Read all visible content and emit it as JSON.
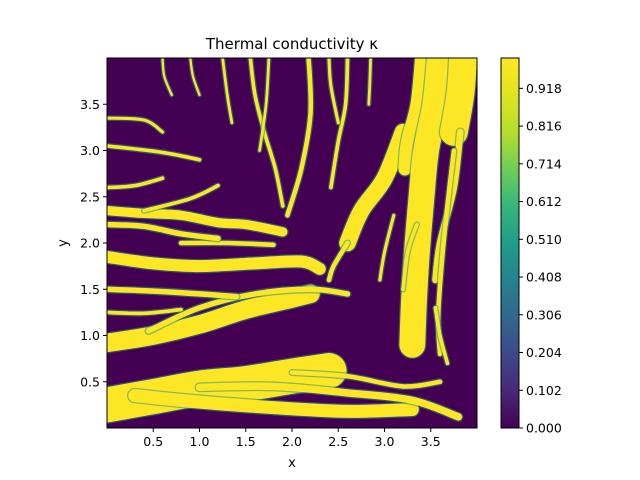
{
  "chart_data": {
    "type": "heatmap",
    "title": "Thermal conductivity κ",
    "xlabel": "x",
    "ylabel": "y",
    "xlim": [
      0,
      4
    ],
    "ylim": [
      0,
      4
    ],
    "x_ticks": [
      0.5,
      1.0,
      1.5,
      2.0,
      2.5,
      3.0,
      3.5
    ],
    "x_tick_labels": [
      "0.5",
      "1.0",
      "1.5",
      "2.0",
      "2.5",
      "3.0",
      "3.5"
    ],
    "y_ticks": [
      0.5,
      1.0,
      1.5,
      2.0,
      2.5,
      3.0,
      3.5
    ],
    "y_tick_labels": [
      "0.5",
      "1.0",
      "1.5",
      "2.0",
      "2.5",
      "3.0",
      "3.5"
    ],
    "colormap": "viridis",
    "colorbar": {
      "range": [
        0,
        1
      ],
      "ticks": [
        0.0,
        0.102,
        0.204,
        0.306,
        0.408,
        0.51,
        0.612,
        0.714,
        0.816,
        0.918
      ],
      "tick_labels": [
        "0.000",
        "0.102",
        "0.204",
        "0.306",
        "0.408",
        "0.510",
        "0.612",
        "0.714",
        "0.816",
        "0.918"
      ]
    },
    "background_value": 0.0,
    "channels": [
      {
        "value": 1,
        "width": 0.38,
        "points": [
          [
            0,
            0.25
          ],
          [
            0.5,
            0.34
          ],
          [
            1.0,
            0.43
          ],
          [
            1.5,
            0.48
          ],
          [
            2.0,
            0.56
          ],
          [
            2.4,
            0.62
          ]
        ]
      },
      {
        "value": 1,
        "width": 0.14,
        "points": [
          [
            0.3,
            0.35
          ],
          [
            1.0,
            0.28
          ],
          [
            1.8,
            0.22
          ],
          [
            2.6,
            0.18
          ],
          [
            3.3,
            0.2
          ]
        ]
      },
      {
        "value": 1,
        "width": 0.08,
        "points": [
          [
            1.0,
            0.44
          ],
          [
            1.8,
            0.45
          ],
          [
            2.6,
            0.38
          ],
          [
            3.3,
            0.3
          ],
          [
            3.8,
            0.12
          ]
        ]
      },
      {
        "value": 1,
        "width": 0.05,
        "points": [
          [
            2.0,
            0.6
          ],
          [
            2.6,
            0.56
          ],
          [
            3.2,
            0.45
          ],
          [
            3.6,
            0.5
          ]
        ]
      },
      {
        "value": 1,
        "width": 0.2,
        "points": [
          [
            0,
            0.92
          ],
          [
            0.5,
            1.0
          ],
          [
            1.0,
            1.12
          ],
          [
            1.5,
            1.28
          ],
          [
            2.0,
            1.4
          ],
          [
            2.2,
            1.45
          ]
        ]
      },
      {
        "value": 1,
        "width": 0.06,
        "points": [
          [
            0.45,
            1.05
          ],
          [
            1.0,
            1.3
          ],
          [
            1.6,
            1.45
          ],
          [
            2.2,
            1.5
          ],
          [
            2.6,
            1.45
          ]
        ]
      },
      {
        "value": 1,
        "width": 0.06,
        "points": [
          [
            0,
            1.5
          ],
          [
            0.5,
            1.48
          ],
          [
            1.0,
            1.45
          ],
          [
            1.4,
            1.42
          ]
        ]
      },
      {
        "value": 1,
        "width": 0.04,
        "points": [
          [
            0,
            1.25
          ],
          [
            0.4,
            1.24
          ],
          [
            0.8,
            1.28
          ]
        ]
      },
      {
        "value": 1,
        "width": 0.13,
        "points": [
          [
            0,
            1.85
          ],
          [
            0.5,
            1.78
          ],
          [
            1.0,
            1.75
          ],
          [
            1.6,
            1.78
          ],
          [
            2.1,
            1.8
          ],
          [
            2.3,
            1.72
          ]
        ]
      },
      {
        "value": 1,
        "width": 0.05,
        "points": [
          [
            0.8,
            2.0
          ],
          [
            1.3,
            2.0
          ],
          [
            1.8,
            1.98
          ]
        ]
      },
      {
        "value": 1,
        "width": 0.1,
        "points": [
          [
            0,
            2.35
          ],
          [
            0.4,
            2.32
          ],
          [
            0.8,
            2.3
          ],
          [
            1.2,
            2.22
          ],
          [
            1.5,
            2.2
          ],
          [
            1.9,
            2.12
          ]
        ]
      },
      {
        "value": 1,
        "width": 0.06,
        "points": [
          [
            0,
            2.2
          ],
          [
            0.4,
            2.18
          ],
          [
            0.8,
            2.1
          ],
          [
            1.2,
            2.05
          ]
        ]
      },
      {
        "value": 1,
        "width": 0.04,
        "points": [
          [
            0.4,
            2.35
          ],
          [
            0.9,
            2.48
          ],
          [
            1.2,
            2.62
          ]
        ]
      },
      {
        "value": 1,
        "width": 0.04,
        "points": [
          [
            0,
            2.6
          ],
          [
            0.3,
            2.62
          ],
          [
            0.6,
            2.7
          ]
        ]
      },
      {
        "value": 1,
        "width": 0.04,
        "points": [
          [
            0,
            3.05
          ],
          [
            0.6,
            2.98
          ],
          [
            1.0,
            2.9
          ]
        ]
      },
      {
        "value": 1,
        "width": 0.035,
        "points": [
          [
            0,
            3.35
          ],
          [
            0.4,
            3.33
          ],
          [
            0.6,
            3.2
          ]
        ]
      },
      {
        "value": 1,
        "width": 0.04,
        "points": [
          [
            1.55,
            4.0
          ],
          [
            1.6,
            3.6
          ],
          [
            1.7,
            3.2
          ],
          [
            1.82,
            2.8
          ],
          [
            1.9,
            2.4
          ]
        ]
      },
      {
        "value": 1,
        "width": 0.03,
        "points": [
          [
            1.75,
            4.0
          ],
          [
            1.72,
            3.5
          ],
          [
            1.65,
            3.0
          ]
        ]
      },
      {
        "value": 1,
        "width": 0.05,
        "points": [
          [
            2.18,
            4.0
          ],
          [
            2.2,
            3.4
          ],
          [
            2.1,
            2.8
          ],
          [
            1.95,
            2.3
          ]
        ]
      },
      {
        "value": 1,
        "width": 0.03,
        "points": [
          [
            1.25,
            4.0
          ],
          [
            1.3,
            3.6
          ],
          [
            1.35,
            3.3
          ]
        ]
      },
      {
        "value": 1,
        "width": 0.025,
        "points": [
          [
            0.9,
            4.0
          ],
          [
            0.93,
            3.8
          ],
          [
            1.0,
            3.6
          ]
        ]
      },
      {
        "value": 1,
        "width": 0.025,
        "points": [
          [
            0.6,
            4.0
          ],
          [
            0.62,
            3.8
          ],
          [
            0.7,
            3.6
          ]
        ]
      },
      {
        "value": 1,
        "width": 0.04,
        "points": [
          [
            2.6,
            4.0
          ],
          [
            2.58,
            3.5
          ],
          [
            2.5,
            3.1
          ],
          [
            2.42,
            2.6
          ]
        ]
      },
      {
        "value": 1,
        "width": 0.03,
        "points": [
          [
            2.85,
            4.0
          ],
          [
            2.84,
            3.7
          ],
          [
            2.83,
            3.5
          ]
        ]
      },
      {
        "value": 1,
        "width": 0.035,
        "points": [
          [
            2.4,
            4.0
          ],
          [
            2.42,
            3.7
          ],
          [
            2.5,
            3.3
          ]
        ]
      },
      {
        "value": 1,
        "width": 0.18,
        "points": [
          [
            3.2,
            3.2
          ],
          [
            3.0,
            2.7
          ],
          [
            2.75,
            2.35
          ],
          [
            2.6,
            2.0
          ]
        ]
      },
      {
        "value": 1,
        "width": 0.05,
        "points": [
          [
            2.6,
            2.0
          ],
          [
            2.45,
            1.75
          ],
          [
            2.4,
            1.6
          ]
        ]
      },
      {
        "value": 1,
        "width": 0.14,
        "points": [
          [
            3.4,
            4.0
          ],
          [
            3.35,
            3.5
          ],
          [
            3.25,
            3.1
          ],
          [
            3.22,
            2.8
          ]
        ]
      },
      {
        "value": 1,
        "width": 0.28,
        "points": [
          [
            3.6,
            4.0
          ],
          [
            3.55,
            3.5
          ],
          [
            3.45,
            3.0
          ],
          [
            3.4,
            2.5
          ],
          [
            3.35,
            1.9
          ],
          [
            3.32,
            1.4
          ],
          [
            3.3,
            0.9
          ]
        ]
      },
      {
        "value": 1,
        "width": 0.3,
        "points": [
          [
            3.85,
            4.0
          ],
          [
            3.82,
            3.6
          ],
          [
            3.75,
            3.2
          ]
        ]
      },
      {
        "value": 1,
        "width": 0.07,
        "points": [
          [
            3.82,
            3.2
          ],
          [
            3.75,
            2.6
          ],
          [
            3.6,
            2.0
          ],
          [
            3.55,
            1.6
          ]
        ]
      },
      {
        "value": 1,
        "width": 0.05,
        "points": [
          [
            3.75,
            3.0
          ],
          [
            3.68,
            2.4
          ],
          [
            3.62,
            1.8
          ],
          [
            3.58,
            1.2
          ],
          [
            3.6,
            0.8
          ]
        ]
      },
      {
        "value": 1,
        "width": 0.04,
        "points": [
          [
            3.35,
            2.2
          ],
          [
            3.25,
            1.9
          ],
          [
            3.2,
            1.5
          ]
        ]
      },
      {
        "value": 1,
        "width": 0.035,
        "points": [
          [
            3.1,
            2.3
          ],
          [
            3.0,
            1.9
          ],
          [
            2.95,
            1.6
          ]
        ]
      },
      {
        "value": 1,
        "width": 0.04,
        "points": [
          [
            3.55,
            1.3
          ],
          [
            3.6,
            1.0
          ],
          [
            3.68,
            0.7
          ]
        ]
      }
    ]
  }
}
